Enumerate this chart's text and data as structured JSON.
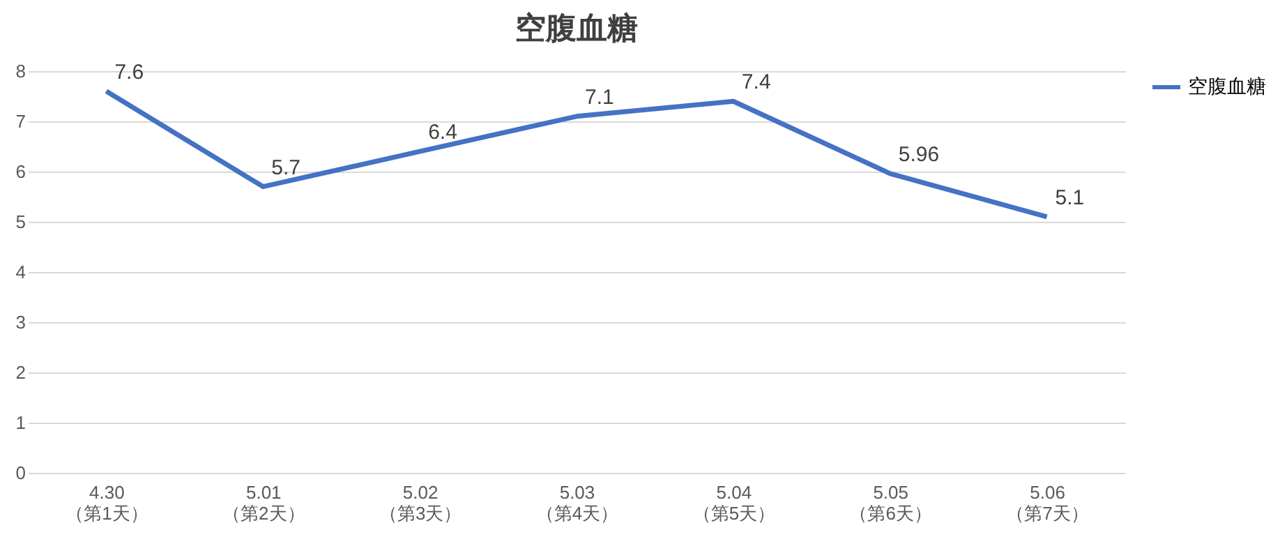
{
  "chart_data": {
    "type": "line",
    "title": "空腹血糖",
    "categories": [
      "4.30\n（第1天）",
      "5.01\n（第2天）",
      "5.02\n（第3天）",
      "5.03\n（第4天）",
      "5.04\n（第5天）",
      "5.05\n（第6天）",
      "5.06\n（第7天）"
    ],
    "series": [
      {
        "name": "空腹血糖",
        "color": "#4472c4",
        "values": [
          7.6,
          5.7,
          6.4,
          7.1,
          7.4,
          5.96,
          5.1
        ]
      }
    ],
    "ylim": [
      0,
      8
    ],
    "yticks": [
      0,
      1,
      2,
      3,
      4,
      5,
      6,
      7,
      8
    ],
    "grid": "y",
    "legend": "right",
    "data_labels": true,
    "marker": "none",
    "line_style": "solid"
  }
}
